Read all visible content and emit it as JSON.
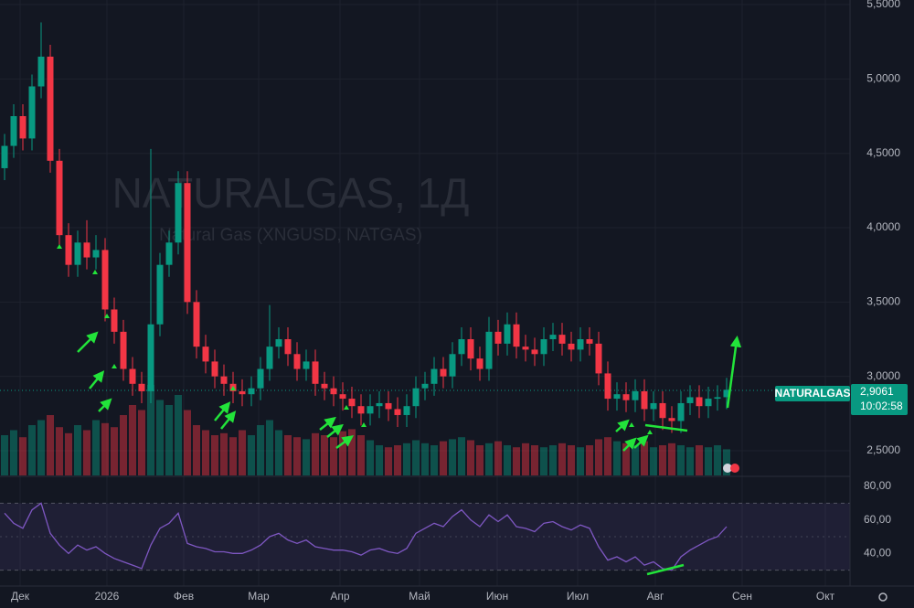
{
  "chart_data": {
    "type": "candlestick",
    "watermark_title": "NATURALGAS, 1Д",
    "watermark_subtitle": "Natural Gas (XNGUSD, NATGAS)",
    "symbol": "NATURALGAS",
    "last_price": {
      "value": 2.9061,
      "label": "2,9061"
    },
    "countdown": "10:02:58",
    "up_color": "#089981",
    "down_color": "#f23645",
    "open": [
      4.4,
      4.55,
      4.75,
      4.6,
      4.95,
      5.15,
      4.45,
      3.95,
      3.75,
      3.9,
      3.8,
      3.85,
      3.45,
      3.3,
      3.05,
      2.95,
      2.9,
      3.35,
      3.75,
      3.9,
      4.3,
      3.5,
      3.2,
      3.1,
      3.0,
      2.95,
      2.9,
      2.88,
      2.92,
      3.05,
      3.2,
      3.25,
      3.15,
      3.05,
      3.1,
      2.95,
      2.92,
      2.88,
      2.85,
      2.8,
      2.75,
      2.8,
      2.82,
      2.78,
      2.74,
      2.8,
      2.92,
      2.95,
      3.05,
      3.0,
      3.15,
      3.25,
      3.12,
      3.05,
      3.3,
      3.22,
      3.35,
      3.2,
      3.18,
      3.15,
      3.25,
      3.28,
      3.22,
      3.18,
      3.25,
      3.22,
      3.02,
      2.85,
      2.88,
      2.84,
      2.9,
      2.78,
      2.82,
      2.72,
      2.7,
      2.82,
      2.86,
      2.8,
      2.85,
      2.86
    ],
    "high": [
      4.63,
      4.83,
      4.83,
      5.03,
      5.38,
      5.23,
      4.53,
      4.03,
      3.98,
      4.05,
      3.95,
      3.93,
      3.53,
      3.38,
      3.13,
      3.03,
      4.53,
      3.83,
      3.98,
      4.38,
      4.38,
      3.58,
      3.28,
      3.18,
      3.08,
      3.03,
      2.98,
      3.0,
      3.13,
      3.48,
      3.33,
      3.33,
      3.23,
      3.18,
      3.18,
      3.03,
      3.0,
      2.96,
      2.93,
      2.88,
      2.88,
      2.9,
      2.9,
      2.86,
      2.88,
      3.0,
      3.03,
      3.13,
      3.13,
      3.23,
      3.33,
      3.33,
      3.2,
      3.4,
      3.38,
      3.43,
      3.43,
      3.28,
      3.26,
      3.33,
      3.36,
      3.36,
      3.3,
      3.33,
      3.33,
      3.3,
      3.1,
      2.96,
      2.96,
      2.98,
      2.98,
      2.9,
      2.9,
      2.8,
      2.9,
      2.94,
      2.94,
      2.93,
      2.94,
      2.99
    ],
    "low": [
      4.32,
      4.47,
      4.52,
      4.52,
      4.87,
      4.37,
      3.87,
      3.67,
      3.67,
      3.72,
      3.72,
      3.37,
      3.22,
      2.97,
      2.87,
      2.82,
      2.82,
      3.27,
      3.67,
      3.82,
      3.42,
      3.12,
      3.02,
      2.92,
      2.87,
      2.82,
      2.8,
      2.8,
      2.84,
      2.97,
      3.12,
      3.07,
      2.97,
      2.97,
      2.87,
      2.84,
      2.8,
      2.77,
      2.72,
      2.67,
      2.67,
      2.72,
      2.7,
      2.66,
      2.66,
      2.72,
      2.84,
      2.87,
      2.92,
      2.92,
      3.07,
      3.04,
      2.97,
      2.97,
      3.14,
      3.14,
      3.12,
      3.1,
      3.07,
      3.07,
      3.17,
      3.14,
      3.1,
      3.1,
      3.14,
      2.94,
      2.77,
      2.77,
      2.76,
      2.76,
      2.7,
      2.7,
      2.64,
      2.62,
      2.62,
      2.74,
      2.72,
      2.72,
      2.77,
      2.78
    ],
    "close": [
      4.55,
      4.75,
      4.6,
      4.95,
      5.15,
      4.45,
      3.95,
      3.75,
      3.9,
      3.8,
      3.85,
      3.45,
      3.3,
      3.05,
      2.95,
      2.9,
      3.35,
      3.75,
      3.9,
      4.3,
      3.5,
      3.2,
      3.1,
      3.0,
      2.95,
      2.9,
      2.88,
      2.92,
      3.05,
      3.2,
      3.25,
      3.15,
      3.05,
      3.1,
      2.95,
      2.92,
      2.88,
      2.85,
      2.8,
      2.75,
      2.8,
      2.82,
      2.78,
      2.74,
      2.8,
      2.92,
      2.95,
      3.05,
      3.0,
      3.15,
      3.25,
      3.12,
      3.05,
      3.3,
      3.22,
      3.35,
      3.2,
      3.18,
      3.15,
      3.25,
      3.28,
      3.22,
      3.18,
      3.25,
      3.22,
      3.02,
      2.85,
      2.88,
      2.84,
      2.9,
      2.78,
      2.82,
      2.72,
      2.7,
      2.82,
      2.86,
      2.8,
      2.85,
      2.86,
      2.91
    ],
    "volume": [
      40,
      45,
      38,
      50,
      55,
      60,
      48,
      42,
      50,
      45,
      55,
      52,
      48,
      60,
      70,
      65,
      90,
      75,
      70,
      80,
      65,
      50,
      45,
      40,
      42,
      38,
      45,
      40,
      50,
      55,
      45,
      40,
      38,
      36,
      42,
      40,
      38,
      44,
      46,
      40,
      35,
      30,
      28,
      30,
      32,
      35,
      32,
      30,
      34,
      36,
      38,
      35,
      30,
      32,
      34,
      30,
      28,
      32,
      30,
      28,
      30,
      32,
      30,
      28,
      30,
      36,
      38,
      34,
      32,
      30,
      34,
      28,
      30,
      32,
      30,
      28,
      30,
      28,
      30,
      26
    ],
    "volume_lim": [
      0,
      100
    ],
    "xlim": [
      -0.5,
      92.5
    ],
    "xticks": [
      {
        "value": 1.7,
        "label": "Дек"
      },
      {
        "value": 11.2,
        "label": "2026"
      },
      {
        "value": 19.6,
        "label": "Фев"
      },
      {
        "value": 27.8,
        "label": "Мар"
      },
      {
        "value": 36.7,
        "label": "Апр"
      },
      {
        "value": 45.4,
        "label": "Май"
      },
      {
        "value": 53.9,
        "label": "Июн"
      },
      {
        "value": 62.7,
        "label": "Июл"
      },
      {
        "value": 71.2,
        "label": "Авг"
      },
      {
        "value": 80.7,
        "label": "Сен"
      },
      {
        "value": 89.8,
        "label": "Окт"
      }
    ],
    "ylim": [
      2.334,
      5.531
    ],
    "yticks": [
      {
        "value": 2.5,
        "label": "2,5000"
      },
      {
        "value": 3,
        "label": "3,0000"
      },
      {
        "value": 3.5,
        "label": "3,5000"
      },
      {
        "value": 4,
        "label": "4,0000"
      },
      {
        "value": 4.5,
        "label": "4,5000"
      },
      {
        "value": 5,
        "label": "5,0000"
      },
      {
        "value": 5.5,
        "label": "5,5000"
      }
    ],
    "rsi": {
      "color": "#7e57c2",
      "values": [
        64,
        58,
        55,
        66,
        70,
        52,
        45,
        40,
        45,
        42,
        44,
        40,
        37,
        35,
        33,
        31,
        45,
        55,
        58,
        64,
        46,
        44,
        43,
        41,
        41,
        40,
        40,
        42,
        45,
        50,
        52,
        48,
        46,
        48,
        44,
        43,
        42,
        42,
        41,
        39,
        42,
        43,
        41,
        40,
        43,
        52,
        55,
        58,
        56,
        62,
        66,
        60,
        56,
        63,
        59,
        63,
        56,
        55,
        53,
        58,
        59,
        56,
        54,
        57,
        55,
        44,
        36,
        38,
        35,
        38,
        33,
        35,
        31,
        30,
        38,
        42,
        45,
        48,
        50,
        56
      ],
      "ylim": [
        20,
        86
      ],
      "yticks": [
        {
          "value": 40,
          "label": "40,00"
        },
        {
          "value": 60,
          "label": "60,00"
        },
        {
          "value": 80,
          "label": "80,00"
        }
      ],
      "band": [
        30,
        70
      ],
      "midline": 50
    }
  }
}
